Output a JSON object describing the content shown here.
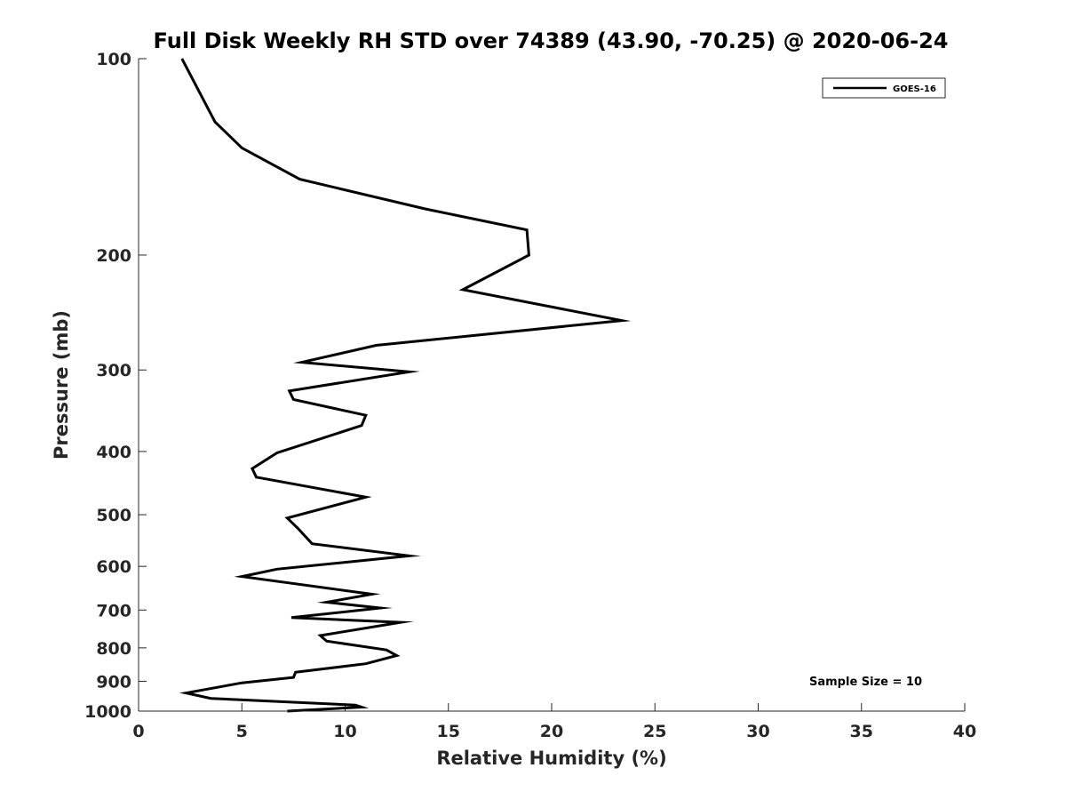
{
  "chart_data": {
    "type": "line",
    "title": "Full Disk Weekly RH STD over 74389 (43.90, -70.25) @ 2020-06-24",
    "xlabel": "Relative Humidity (%)",
    "ylabel": "Pressure (mb)",
    "xlim": [
      0,
      40
    ],
    "ylim": [
      100,
      1000
    ],
    "yscale": "log",
    "y_reversed": true,
    "x_ticks": [
      0,
      5,
      10,
      15,
      20,
      25,
      30,
      35,
      40
    ],
    "y_ticks": [
      100,
      200,
      300,
      400,
      500,
      600,
      700,
      800,
      900,
      1000
    ],
    "grid": false,
    "legend": {
      "placement": "top-right",
      "entries": [
        "GOES-16"
      ]
    },
    "annotation": "Sample Size = 10",
    "series": [
      {
        "name": "GOES-16",
        "color": "#000000",
        "points": [
          [
            2.1,
            100
          ],
          [
            3.7,
            125
          ],
          [
            5.0,
            137
          ],
          [
            7.8,
            153
          ],
          [
            13.9,
            170
          ],
          [
            18.8,
            183
          ],
          [
            18.9,
            200
          ],
          [
            15.7,
            226
          ],
          [
            23.4,
            252
          ],
          [
            11.5,
            275
          ],
          [
            7.9,
            292
          ],
          [
            13.1,
            302
          ],
          [
            7.3,
            323
          ],
          [
            7.5,
            333
          ],
          [
            11.0,
            352
          ],
          [
            10.8,
            365
          ],
          [
            6.7,
            402
          ],
          [
            5.5,
            425
          ],
          [
            5.7,
            438
          ],
          [
            11.0,
            470
          ],
          [
            7.2,
            506
          ],
          [
            7.7,
            524
          ],
          [
            8.4,
            554
          ],
          [
            13.1,
            578
          ],
          [
            6.7,
            606
          ],
          [
            5.0,
            622
          ],
          [
            11.3,
            662
          ],
          [
            9.1,
            681
          ],
          [
            11.7,
            695
          ],
          [
            7.4,
            719
          ],
          [
            12.7,
            731
          ],
          [
            8.8,
            766
          ],
          [
            9.1,
            781
          ],
          [
            12.0,
            806
          ],
          [
            12.5,
            822
          ],
          [
            11.0,
            846
          ],
          [
            7.6,
            872
          ],
          [
            7.5,
            888
          ],
          [
            5.0,
            905
          ],
          [
            3.2,
            927
          ],
          [
            2.3,
            938
          ],
          [
            3.5,
            956
          ],
          [
            10.5,
            979
          ],
          [
            10.8,
            986
          ],
          [
            7.2,
            1000
          ]
        ]
      }
    ]
  }
}
